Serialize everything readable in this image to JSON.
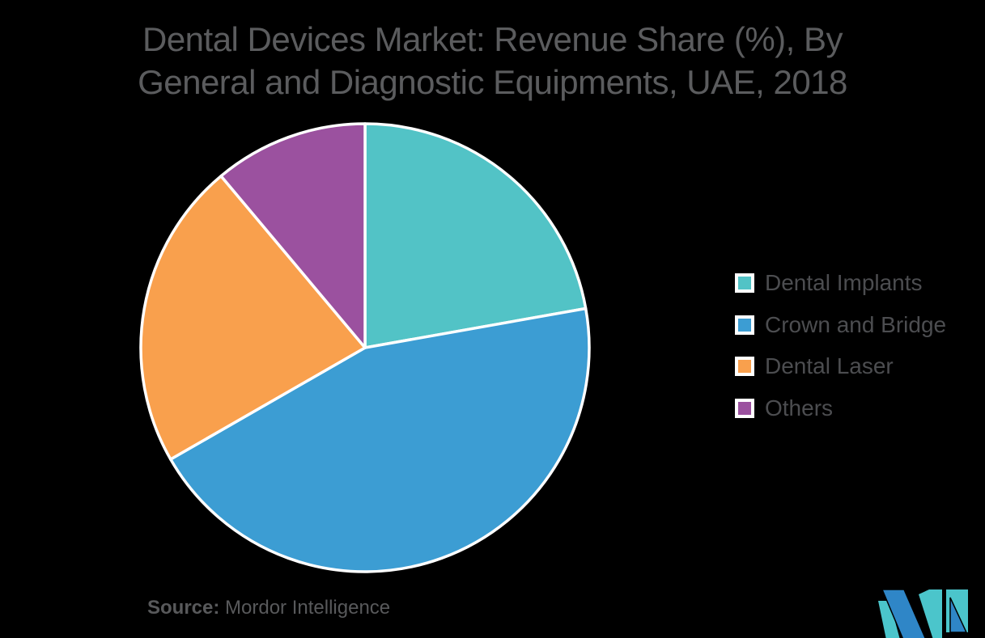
{
  "background_color": "#000000",
  "title": {
    "lines": [
      "Dental Devices Market: Revenue Share (%), By",
      "General and Diagnostic Equipments, UAE, 2018"
    ],
    "color": "#5B5C5E"
  },
  "chart_data": {
    "type": "pie",
    "title": "Dental Devices Market: Revenue Share (%), By General and Diagnostic Equipments, UAE, 2018",
    "categories": [
      "Dental Implants",
      "Crown and Bridge",
      "Dental Laser",
      "Others"
    ],
    "values": [
      22.2,
      44.5,
      22.2,
      11.1
    ],
    "unit": "%",
    "colors": [
      "#52C3C6",
      "#3C9DD3",
      "#F9A04D",
      "#9B519F"
    ],
    "slice_border_color": "#FFFFFF",
    "start_angle_deg": 0,
    "direction": "clockwise",
    "legend_position": "right",
    "data_labels": "none"
  },
  "legend": {
    "items": [
      {
        "label": "Dental Implants"
      },
      {
        "label": "Crown and Bridge"
      },
      {
        "label": "Dental Laser"
      },
      {
        "label": "Others"
      }
    ]
  },
  "source": {
    "label": "Source:",
    "text": "Mordor Intelligence"
  },
  "logo": {
    "name": "mordor-intelligence-logo",
    "colors": {
      "blue": "#2F86C7",
      "teal": "#4BC5CB"
    }
  }
}
